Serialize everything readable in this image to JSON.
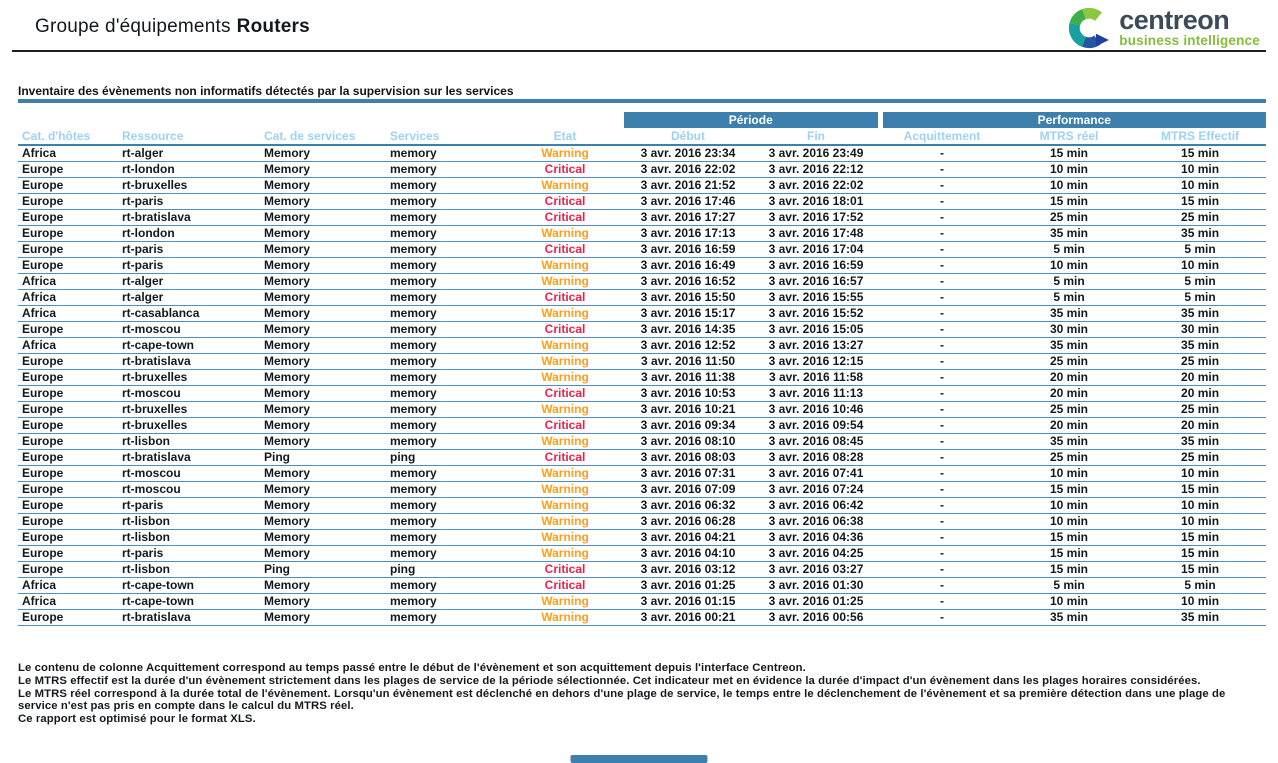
{
  "header": {
    "title_prefix": "Groupe d'équipements",
    "title_group": "Routers",
    "logo_brand": "centreon",
    "logo_tagline": "business intelligence"
  },
  "section": {
    "title": "Inventaire des évènements non informatifs détectés par la supervision sur les services"
  },
  "table": {
    "group_headers": {
      "periode": "Période",
      "performance": "Performance"
    },
    "columns": [
      "Cat. d'hôtes",
      "Ressource",
      "Cat. de services",
      "Services",
      "Etat",
      "Début",
      "Fin",
      "Acquittement",
      "MTRS réel",
      "MTRS Effectif"
    ],
    "rows": [
      [
        "Africa",
        "rt-alger",
        "Memory",
        "memory",
        "Warning",
        "3 avr. 2016 23:34",
        "3 avr. 2016 23:49",
        "-",
        "15 min",
        "15 min"
      ],
      [
        "Europe",
        "rt-london",
        "Memory",
        "memory",
        "Critical",
        "3 avr. 2016 22:02",
        "3 avr. 2016 22:12",
        "-",
        "10 min",
        "10 min"
      ],
      [
        "Europe",
        "rt-bruxelles",
        "Memory",
        "memory",
        "Warning",
        "3 avr. 2016 21:52",
        "3 avr. 2016 22:02",
        "-",
        "10 min",
        "10 min"
      ],
      [
        "Europe",
        "rt-paris",
        "Memory",
        "memory",
        "Critical",
        "3 avr. 2016 17:46",
        "3 avr. 2016 18:01",
        "-",
        "15 min",
        "15 min"
      ],
      [
        "Europe",
        "rt-bratislava",
        "Memory",
        "memory",
        "Critical",
        "3 avr. 2016 17:27",
        "3 avr. 2016 17:52",
        "-",
        "25 min",
        "25 min"
      ],
      [
        "Europe",
        "rt-london",
        "Memory",
        "memory",
        "Warning",
        "3 avr. 2016 17:13",
        "3 avr. 2016 17:48",
        "-",
        "35 min",
        "35 min"
      ],
      [
        "Europe",
        "rt-paris",
        "Memory",
        "memory",
        "Critical",
        "3 avr. 2016 16:59",
        "3 avr. 2016 17:04",
        "-",
        "5 min",
        "5 min"
      ],
      [
        "Europe",
        "rt-paris",
        "Memory",
        "memory",
        "Warning",
        "3 avr. 2016 16:49",
        "3 avr. 2016 16:59",
        "-",
        "10 min",
        "10 min"
      ],
      [
        "Africa",
        "rt-alger",
        "Memory",
        "memory",
        "Warning",
        "3 avr. 2016 16:52",
        "3 avr. 2016 16:57",
        "-",
        "5 min",
        "5 min"
      ],
      [
        "Africa",
        "rt-alger",
        "Memory",
        "memory",
        "Critical",
        "3 avr. 2016 15:50",
        "3 avr. 2016 15:55",
        "-",
        "5 min",
        "5 min"
      ],
      [
        "Africa",
        "rt-casablanca",
        "Memory",
        "memory",
        "Warning",
        "3 avr. 2016 15:17",
        "3 avr. 2016 15:52",
        "-",
        "35 min",
        "35 min"
      ],
      [
        "Europe",
        "rt-moscou",
        "Memory",
        "memory",
        "Critical",
        "3 avr. 2016 14:35",
        "3 avr. 2016 15:05",
        "-",
        "30 min",
        "30 min"
      ],
      [
        "Africa",
        "rt-cape-town",
        "Memory",
        "memory",
        "Warning",
        "3 avr. 2016 12:52",
        "3 avr. 2016 13:27",
        "-",
        "35 min",
        "35 min"
      ],
      [
        "Europe",
        "rt-bratislava",
        "Memory",
        "memory",
        "Warning",
        "3 avr. 2016 11:50",
        "3 avr. 2016 12:15",
        "-",
        "25 min",
        "25 min"
      ],
      [
        "Europe",
        "rt-bruxelles",
        "Memory",
        "memory",
        "Warning",
        "3 avr. 2016 11:38",
        "3 avr. 2016 11:58",
        "-",
        "20 min",
        "20 min"
      ],
      [
        "Europe",
        "rt-moscou",
        "Memory",
        "memory",
        "Critical",
        "3 avr. 2016 10:53",
        "3 avr. 2016 11:13",
        "-",
        "20 min",
        "20 min"
      ],
      [
        "Europe",
        "rt-bruxelles",
        "Memory",
        "memory",
        "Warning",
        "3 avr. 2016 10:21",
        "3 avr. 2016 10:46",
        "-",
        "25 min",
        "25 min"
      ],
      [
        "Europe",
        "rt-bruxelles",
        "Memory",
        "memory",
        "Critical",
        "3 avr. 2016 09:34",
        "3 avr. 2016 09:54",
        "-",
        "20 min",
        "20 min"
      ],
      [
        "Europe",
        "rt-lisbon",
        "Memory",
        "memory",
        "Warning",
        "3 avr. 2016 08:10",
        "3 avr. 2016 08:45",
        "-",
        "35 min",
        "35 min"
      ],
      [
        "Europe",
        "rt-bratislava",
        "Ping",
        "ping",
        "Critical",
        "3 avr. 2016 08:03",
        "3 avr. 2016 08:28",
        "-",
        "25 min",
        "25 min"
      ],
      [
        "Europe",
        "rt-moscou",
        "Memory",
        "memory",
        "Warning",
        "3 avr. 2016 07:31",
        "3 avr. 2016 07:41",
        "-",
        "10 min",
        "10 min"
      ],
      [
        "Europe",
        "rt-moscou",
        "Memory",
        "memory",
        "Warning",
        "3 avr. 2016 07:09",
        "3 avr. 2016 07:24",
        "-",
        "15 min",
        "15 min"
      ],
      [
        "Europe",
        "rt-paris",
        "Memory",
        "memory",
        "Warning",
        "3 avr. 2016 06:32",
        "3 avr. 2016 06:42",
        "-",
        "10 min",
        "10 min"
      ],
      [
        "Europe",
        "rt-lisbon",
        "Memory",
        "memory",
        "Warning",
        "3 avr. 2016 06:28",
        "3 avr. 2016 06:38",
        "-",
        "10 min",
        "10 min"
      ],
      [
        "Europe",
        "rt-lisbon",
        "Memory",
        "memory",
        "Warning",
        "3 avr. 2016 04:21",
        "3 avr. 2016 04:36",
        "-",
        "15 min",
        "15 min"
      ],
      [
        "Europe",
        "rt-paris",
        "Memory",
        "memory",
        "Warning",
        "3 avr. 2016 04:10",
        "3 avr. 2016 04:25",
        "-",
        "15 min",
        "15 min"
      ],
      [
        "Europe",
        "rt-lisbon",
        "Ping",
        "ping",
        "Critical",
        "3 avr. 2016 03:12",
        "3 avr. 2016 03:27",
        "-",
        "15 min",
        "15 min"
      ],
      [
        "Africa",
        "rt-cape-town",
        "Memory",
        "memory",
        "Critical",
        "3 avr. 2016 01:25",
        "3 avr. 2016 01:30",
        "-",
        "5 min",
        "5 min"
      ],
      [
        "Africa",
        "rt-cape-town",
        "Memory",
        "memory",
        "Warning",
        "3 avr. 2016 01:15",
        "3 avr. 2016 01:25",
        "-",
        "10 min",
        "10 min"
      ],
      [
        "Europe",
        "rt-bratislava",
        "Memory",
        "memory",
        "Warning",
        "3 avr. 2016 00:21",
        "3 avr. 2016 00:56",
        "-",
        "35 min",
        "35 min"
      ]
    ]
  },
  "footer": {
    "lines": [
      "Le contenu de colonne Acquittement correspond au temps passé entre le début de l'évènement et son acquittement depuis l'interface Centreon.",
      "Le MTRS effectif est la durée d'un évènement strictement dans les plages de service de la période sélectionnée. Cet indicateur met en évidence la durée d'impact d'un évènement dans les plages horaires considérées.",
      "Le MTRS réel correspond à la durée total de l'évènement. Lorsqu'un évènement est déclenché en dehors d'une plage de service, le temps entre le déclenchement de l'évènement et sa première détection dans une plage de",
      "service n'est pas pris en compte dans le calcul du MTRS réel.",
      "Ce rapport est optimisé pour le format XLS."
    ]
  },
  "colors": {
    "header_bar_blue": "#3d7fad",
    "subheader_text_blue": "#9ed2f0",
    "row_line_blue": "#4e8fc0",
    "warning_orange": "#ff9e1b",
    "critical_red": "#e8224e",
    "logo_green": "#84bd3a",
    "brand_gray": "#3d4a5a"
  }
}
